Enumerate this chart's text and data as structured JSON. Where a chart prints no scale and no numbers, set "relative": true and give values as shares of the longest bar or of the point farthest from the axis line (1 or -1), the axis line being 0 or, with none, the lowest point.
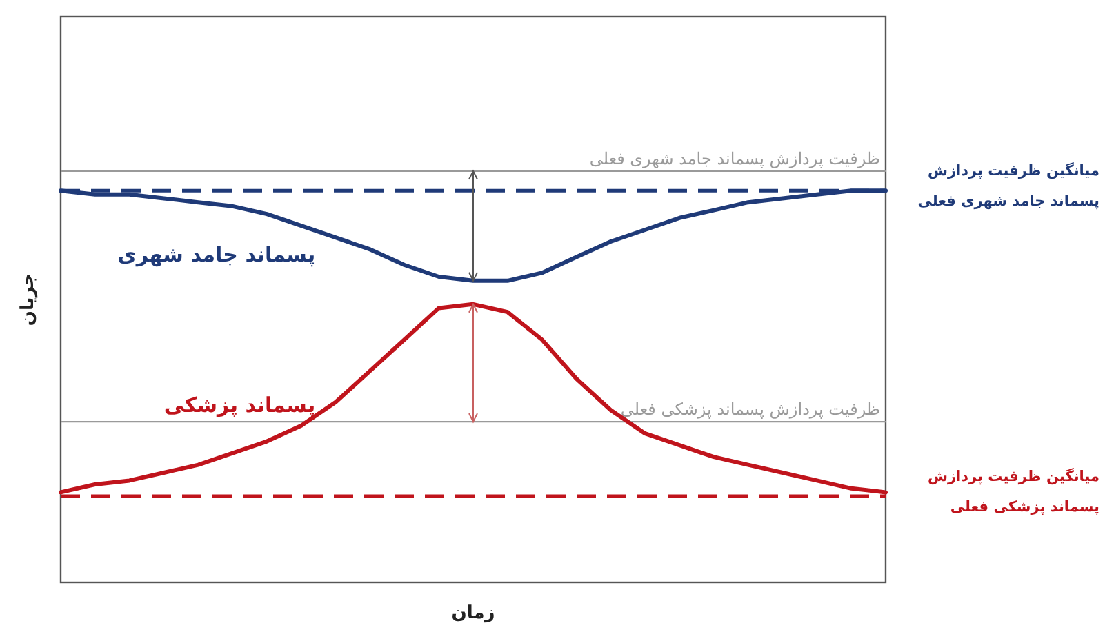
{
  "chart_data": {
    "type": "line",
    "relative": true,
    "xlabel": "زمان",
    "ylabel": "جریان",
    "categories": [
      null,
      null,
      null,
      null,
      null,
      null,
      null,
      null,
      null,
      null,
      null,
      null,
      null,
      null,
      null,
      null,
      null,
      null,
      null,
      null,
      null,
      null,
      null,
      null,
      null
    ],
    "series": [
      {
        "name": "پسماند جامد شهری",
        "color": "#1f3a78",
        "values": [
          1.0,
          0.99,
          0.99,
          0.98,
          0.97,
          0.96,
          0.94,
          0.91,
          0.88,
          0.85,
          0.81,
          0.78,
          0.77,
          0.77,
          0.79,
          0.83,
          0.87,
          0.9,
          0.93,
          0.95,
          0.97,
          0.98,
          0.99,
          1.0,
          1.0
        ]
      },
      {
        "name": "پسماند پزشکی",
        "color": "#c0141c",
        "values": [
          0.23,
          0.25,
          0.26,
          0.28,
          0.3,
          0.33,
          0.36,
          0.4,
          0.46,
          0.54,
          0.62,
          0.7,
          0.71,
          0.69,
          0.62,
          0.52,
          0.44,
          0.38,
          0.35,
          0.32,
          0.3,
          0.28,
          0.26,
          0.24,
          0.23
        ]
      }
    ],
    "ref_lines": [
      {
        "axis": "y",
        "value": 1.05,
        "label": "ظرفیت پردازش پسماند جامد شهری فعلی",
        "color": "#9a9a9a",
        "line_style": "solid"
      },
      {
        "axis": "y",
        "value": 1.0,
        "label": "میانگین ظرفیت پردازش پسماند جامد شهری فعلی",
        "color": "#1f3a78",
        "line_style": "dashed"
      },
      {
        "axis": "y",
        "value": 0.41,
        "label": "ظرفیت پردازش پسماند پزشکی فعلی",
        "color": "#9a9a9a",
        "line_style": "solid"
      },
      {
        "axis": "y",
        "value": 0.22,
        "label": "میانگین ظرفیت پردازش پسماند پزشکی فعلی",
        "color": "#c0141c",
        "line_style": "dashed"
      }
    ]
  }
}
